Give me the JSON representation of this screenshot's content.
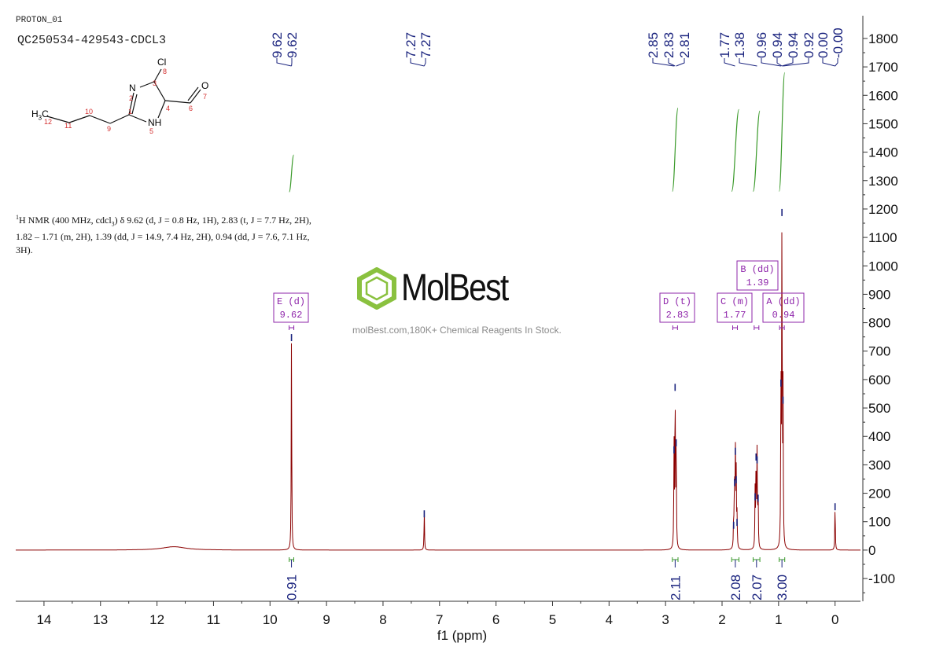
{
  "header": {
    "experiment": "PROTON_01",
    "sample": "QC250534-429543-CDCL3"
  },
  "watermark": {
    "brand": "MolBest",
    "tagline": "molBest.com,180K+ Chemical Reagents In Stock.",
    "brand_color": "#8ac13f"
  },
  "summary": {
    "nucleus_sup": "1",
    "lead": "H NMR (400 MHz, cdcl",
    "sub": "3",
    "line1_rest": ") δ 9.62 (d, J = 0.8 Hz, 1H), 2.83 (t, J = 7.7 Hz, 2H),",
    "line2": "1.82 – 1.71 (m, 2H), 1.39 (dd, J = 14.9, 7.4 Hz, 2H), 0.94 (dd, J = 7.6, 7.1 Hz,",
    "line3": "3H)."
  },
  "structure": {
    "labels": [
      "Cl",
      "N",
      "NH",
      "O",
      "H",
      "C",
      "3"
    ],
    "numbers": [
      "8",
      "3",
      "2",
      "1",
      "4",
      "6",
      "7",
      "5",
      "12",
      "11",
      "10",
      "9"
    ]
  },
  "chart_data": {
    "type": "line",
    "xlabel": "f1 (ppm)",
    "ylabel": "",
    "xlim": [
      14.5,
      -0.45
    ],
    "ylim": [
      -180,
      1880
    ],
    "x_ticks": [
      "14",
      "13",
      "12",
      "11",
      "10",
      "9",
      "8",
      "7",
      "6",
      "5",
      "4",
      "3",
      "2",
      "1",
      "0"
    ],
    "y_ticks": [
      "1800",
      "1700",
      "1600",
      "1500",
      "1400",
      "1300",
      "1200",
      "1100",
      "1000",
      "900",
      "800",
      "700",
      "600",
      "500",
      "400",
      "300",
      "200",
      "100",
      "0",
      "-100"
    ],
    "colors": {
      "spectrum": "#8b0000",
      "peak_labels": "#1a237e",
      "integrals": "#3a9a2a",
      "multiplets": "#8e24aa"
    },
    "peak_label_groups": [
      {
        "labels": [
          "9.62",
          "9.62"
        ]
      },
      {
        "labels": [
          "7.27",
          "7.27"
        ]
      },
      {
        "labels": [
          "2.85",
          "2.83",
          "2.81"
        ]
      },
      {
        "labels": [
          "1.77",
          "1.38"
        ]
      },
      {
        "labels": [
          "0.96",
          "0.94",
          "0.94",
          "0.92"
        ]
      },
      {
        "labels": [
          "0.00",
          "-0.00"
        ]
      }
    ],
    "peaks": [
      {
        "ppm": 9.62,
        "height": 760,
        "width": 0.005
      },
      {
        "ppm": 7.27,
        "height": 140,
        "width": 0.005
      },
      {
        "ppm": 2.85,
        "height": 365,
        "width": 0.005
      },
      {
        "ppm": 2.831,
        "height": 585,
        "width": 0.005
      },
      {
        "ppm": 2.812,
        "height": 390,
        "width": 0.005
      },
      {
        "ppm": 1.795,
        "height": 100,
        "width": 0.005
      },
      {
        "ppm": 1.78,
        "height": 250,
        "width": 0.005
      },
      {
        "ppm": 1.765,
        "height": 360,
        "width": 0.005
      },
      {
        "ppm": 1.75,
        "height": 260,
        "width": 0.005
      },
      {
        "ppm": 1.735,
        "height": 110,
        "width": 0.005
      },
      {
        "ppm": 1.415,
        "height": 200,
        "width": 0.005
      },
      {
        "ppm": 1.398,
        "height": 340,
        "width": 0.005
      },
      {
        "ppm": 1.38,
        "height": 330,
        "width": 0.005
      },
      {
        "ppm": 1.362,
        "height": 195,
        "width": 0.005
      },
      {
        "ppm": 0.958,
        "height": 600,
        "width": 0.005
      },
      {
        "ppm": 0.94,
        "height": 1200,
        "width": 0.005
      },
      {
        "ppm": 0.921,
        "height": 540,
        "width": 0.005
      },
      {
        "ppm": 0.0,
        "height": 165,
        "width": 0.005
      }
    ],
    "broad_hump": {
      "ppm": 11.7,
      "height": 12,
      "width": 0.25
    },
    "integrals": [
      {
        "from": 9.66,
        "to": 9.58,
        "value": "0.91",
        "curve_bottom": 1260,
        "curve_top": 1390
      },
      {
        "from": 2.88,
        "to": 2.78,
        "value": "2.11",
        "curve_bottom": 1262,
        "curve_top": 1555
      },
      {
        "from": 1.83,
        "to": 1.7,
        "value": "2.08",
        "curve_bottom": 1262,
        "curve_top": 1550
      },
      {
        "from": 1.45,
        "to": 1.33,
        "value": "2.07",
        "curve_bottom": 1262,
        "curve_top": 1545
      },
      {
        "from": 0.99,
        "to": 0.89,
        "value": "3.00",
        "curve_bottom": 1262,
        "curve_top": 1680
      }
    ],
    "multiplets": [
      {
        "letter": "E",
        "type": "(d)",
        "shift": "9.62",
        "center": 9.62
      },
      {
        "letter": "D",
        "type": "(t)",
        "shift": "2.83",
        "center": 2.83
      },
      {
        "letter": "C",
        "type": "(m)",
        "shift": "1.77",
        "center": 1.77
      },
      {
        "letter": "B",
        "type": "(dd)",
        "shift": "1.39",
        "center": 1.39
      },
      {
        "letter": "A",
        "type": "(dd)",
        "shift": "0.94",
        "center": 0.94
      }
    ]
  }
}
